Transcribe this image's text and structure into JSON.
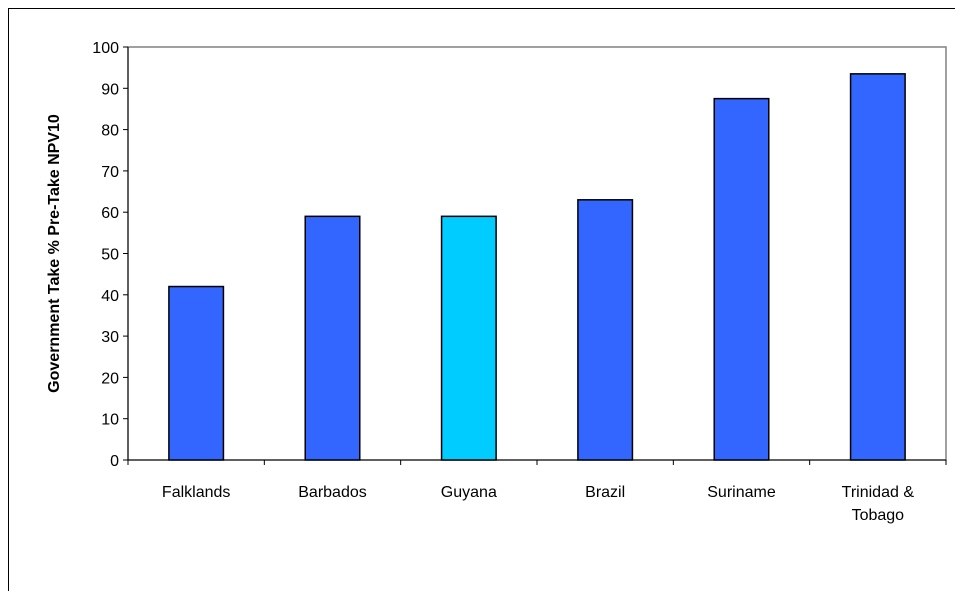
{
  "chart_data": {
    "type": "bar",
    "title": "",
    "xlabel": "",
    "ylabel": "Government  Take % Pre-Take NPV10",
    "ylim": [
      0,
      100
    ],
    "yticks": [
      0,
      10,
      20,
      30,
      40,
      50,
      60,
      70,
      80,
      90,
      100
    ],
    "grid": false,
    "legend": "none",
    "categories": [
      "Falklands",
      "Barbados",
      "Guyana",
      "Brazil",
      "Suriname",
      "Trinidad & Tobago"
    ],
    "category_label_lines": [
      [
        "Falklands"
      ],
      [
        "Barbados"
      ],
      [
        "Guyana"
      ],
      [
        "Brazil"
      ],
      [
        "Suriname"
      ],
      [
        "Trinidad &",
        "Tobago"
      ]
    ],
    "values": [
      42,
      59,
      59,
      63,
      87.5,
      93.5
    ],
    "bar_colors": [
      "#3366FF",
      "#3366FF",
      "#00CCFF",
      "#3366FF",
      "#3366FF",
      "#3366FF"
    ],
    "bar_border_color": "#000000",
    "plot_border_color": "#808080"
  }
}
